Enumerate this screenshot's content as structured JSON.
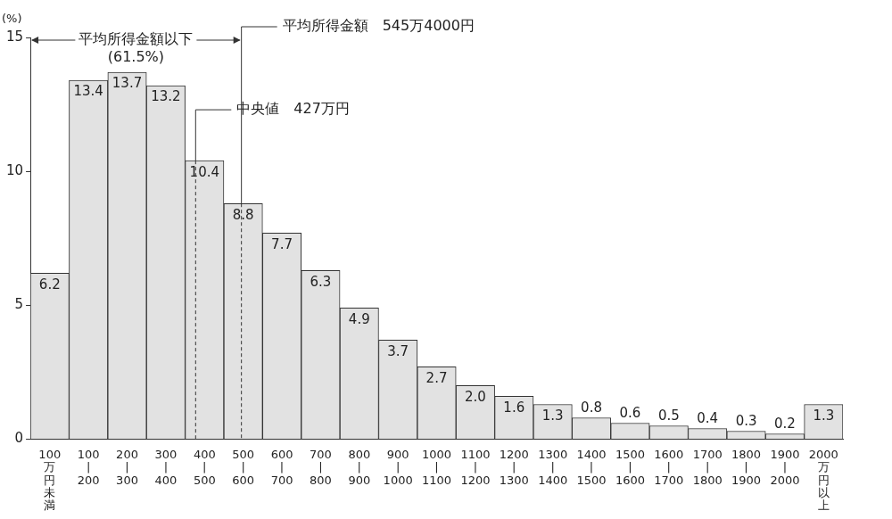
{
  "chart_data": {
    "type": "bar",
    "y_label": "(%)",
    "categories": [
      "100万円未満",
      "100|200",
      "200|300",
      "300|400",
      "400|500",
      "500|600",
      "600|700",
      "700|800",
      "800|900",
      "900|1000",
      "1000|1100",
      "1100|1200",
      "1200|1300",
      "1300|1400",
      "1400|1500",
      "1500|1600",
      "1600|1700",
      "1700|1800",
      "1800|1900",
      "1900|2000",
      "2000万円以上"
    ],
    "values": [
      6.2,
      13.4,
      13.7,
      13.2,
      10.4,
      8.8,
      7.7,
      6.3,
      4.9,
      3.7,
      2.7,
      2.0,
      1.6,
      1.3,
      0.8,
      0.6,
      0.5,
      0.4,
      0.3,
      0.2,
      1.3
    ],
    "value_labels": [
      "6.2",
      "13.4",
      "13.7",
      "13.2",
      "10.4",
      "8.8",
      "7.7",
      "6.3",
      "4.9",
      "3.7",
      "2.7",
      "2.0",
      "1.6",
      "1.3",
      "0.8",
      "0.6",
      "0.5",
      "0.4",
      "0.3",
      "0.2",
      "1.3"
    ],
    "color": "#e2e2e2",
    "ylim": [
      0,
      15
    ],
    "yticks": [
      0,
      5,
      10,
      15
    ],
    "grid": false,
    "data_labels": true,
    "mean": {
      "value": 545.4,
      "label": "平均所得金額　545万4000円"
    },
    "median": {
      "value": 427,
      "label": "中央値　427万円"
    },
    "below_mean": {
      "label": "平均所得金額以下",
      "value": 61.5,
      "value_label": "(61.5%)"
    }
  }
}
